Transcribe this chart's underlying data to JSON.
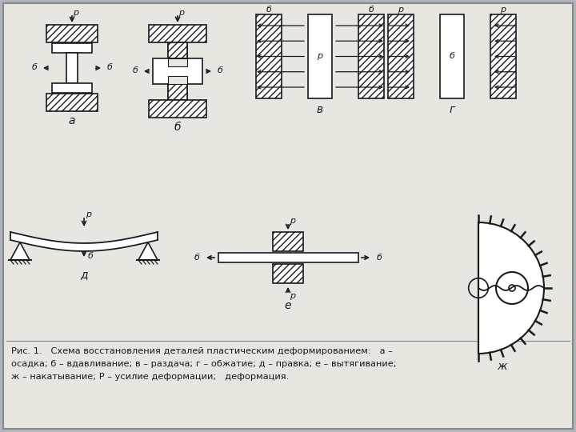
{
  "bg_outer": "#b0b4bc",
  "bg_inner": "#e8e6e0",
  "lc": "#1a1a1a",
  "title_text1": "Рис. 1.   Схема восстановления деталей пластическим деформированием:   а –",
  "title_text2": "осадка; б – вдавливание; в – раздача; г – обжатие; д – правка; е – вытягивание;",
  "title_text3": "ж – накатывание; Р – усилие деформации;   деформация."
}
